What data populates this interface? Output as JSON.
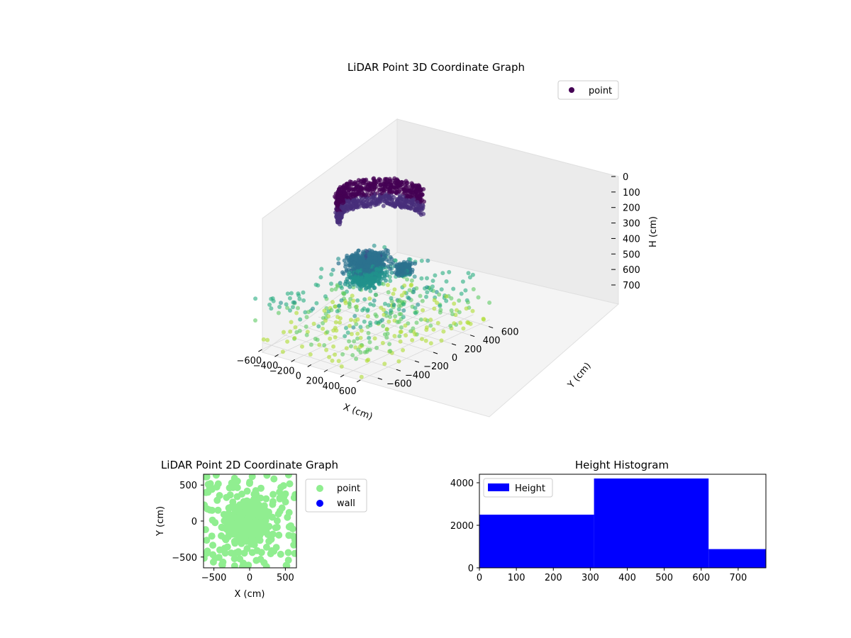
{
  "chart_data": [
    {
      "type": "scatter",
      "title": "LiDAR Point 3D Coordinate Graph",
      "xlabel": "X (cm)",
      "ylabel": "Y (cm)",
      "zlabel": "H (cm)",
      "xlim": [
        -700,
        700
      ],
      "ylim": [
        -700,
        700
      ],
      "zlim": [
        750,
        0
      ],
      "x_ticks": [
        "−600",
        "−400",
        "−200",
        "0",
        "200",
        "400",
        "600"
      ],
      "y_ticks": [
        "−600",
        "−400",
        "−200",
        "0",
        "200",
        "400",
        "600"
      ],
      "z_ticks": [
        "0",
        "100",
        "200",
        "300",
        "400",
        "500",
        "600",
        "700"
      ],
      "z_inverted": true,
      "colormap": "viridis",
      "colors": [
        "#440154",
        "#472d7b",
        "#3b528b",
        "#2c728e",
        "#21918c",
        "#28ae80",
        "#5ec962",
        "#addc30",
        "#fde725"
      ],
      "grid": true,
      "legend": {
        "position": "top-right",
        "entries": [
          {
            "label": "point",
            "color": "#440154"
          }
        ]
      },
      "clusters": [
        {
          "part": "arc ceiling",
          "x_range": [
            -550,
            250
          ],
          "y_range": [
            -100,
            600
          ],
          "h_range": [
            0,
            150
          ]
        },
        {
          "part": "central mass",
          "x_range": [
            -300,
            200
          ],
          "y_range": [
            -300,
            200
          ],
          "h_range": [
            250,
            450
          ]
        },
        {
          "part": "side blob",
          "x_range": [
            150,
            350
          ],
          "y_range": [
            0,
            200
          ],
          "h_range": [
            300,
            380
          ]
        },
        {
          "part": "floor scatter",
          "x_range": [
            -700,
            700
          ],
          "y_range": [
            -700,
            700
          ],
          "h_range": [
            450,
            750
          ]
        }
      ]
    },
    {
      "type": "scatter",
      "title": "LiDAR Point 2D Coordinate Graph",
      "xlabel": "X (cm)",
      "ylabel": "Y (cm)",
      "xlim": [
        -650,
        650
      ],
      "ylim": [
        -650,
        650
      ],
      "x_ticks": [
        "−500",
        "0",
        "500"
      ],
      "y_ticks": [
        "500",
        "0",
        "−500"
      ],
      "legend": {
        "position": "right outside",
        "entries": [
          {
            "label": "point",
            "color": "#90ee90"
          },
          {
            "label": "wall",
            "color": "#0000ff"
          }
        ]
      },
      "point_color": "#90ee90",
      "wall_color": "#0000ff"
    },
    {
      "type": "bar",
      "title": "Height Histogram",
      "xlabel": "",
      "ylabel": "",
      "xlim": [
        0,
        775
      ],
      "ylim": [
        0,
        4400
      ],
      "x_ticks": [
        "0",
        "100",
        "200",
        "300",
        "400",
        "500",
        "600",
        "700"
      ],
      "y_ticks": [
        "0",
        "2000",
        "4000"
      ],
      "bins": [
        {
          "x0": 0,
          "x1": 310,
          "count": 2500
        },
        {
          "x0": 310,
          "x1": 620,
          "count": 4200
        },
        {
          "x0": 620,
          "x1": 775,
          "count": 880
        }
      ],
      "color": "#0000ff",
      "legend": {
        "position": "top-left",
        "entries": [
          {
            "label": "Height",
            "color": "#0000ff"
          }
        ]
      }
    }
  ]
}
